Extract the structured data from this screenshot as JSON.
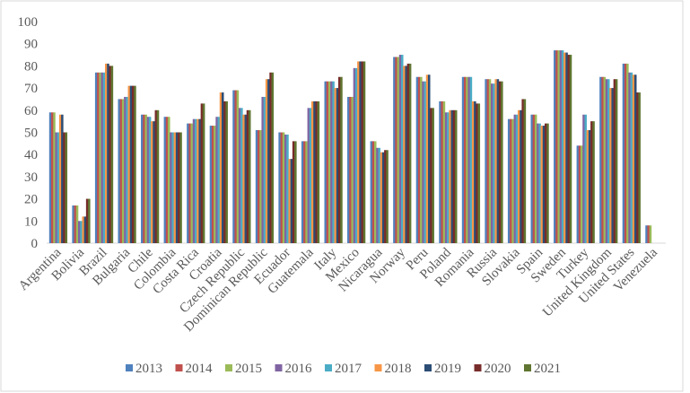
{
  "chart_data": {
    "type": "bar",
    "title": "",
    "xlabel": "",
    "ylabel": "",
    "ylim": [
      0,
      100
    ],
    "yticks": [
      0,
      10,
      20,
      30,
      40,
      50,
      60,
      70,
      80,
      90,
      100
    ],
    "grid": false,
    "legend_position": "bottom",
    "categories": [
      "Argentina",
      "Bolivia",
      "Brazil",
      "Bulgaria",
      "Chile",
      "Colombia",
      "Costa Rica",
      "Croatia",
      "Czech Republic",
      "Dominican Republic",
      "Ecuador",
      "Guatemala",
      "Italy",
      "Mexico",
      "Nicaragua",
      "Norway",
      "Peru",
      "Poland",
      "Romania",
      "Russia",
      "Slovakia",
      "Spain",
      "Sweden",
      "Turkey",
      "United Kingdom",
      "United States",
      "Venezuela"
    ],
    "colors": [
      "#4f81bd",
      "#c0504d",
      "#9bbb59",
      "#8064a2",
      "#4bacc6",
      "#f79646",
      "#2c4d75",
      "#772c2a",
      "#5f7530"
    ],
    "series": [
      {
        "name": "2013",
        "values": [
          59,
          17,
          77,
          65,
          58,
          57,
          54,
          53,
          69,
          51,
          50,
          46,
          73,
          66,
          46,
          84,
          75,
          64,
          75,
          74,
          56,
          58,
          87,
          44,
          75,
          81,
          8
        ]
      },
      {
        "name": "2014",
        "values": [
          59,
          17,
          77,
          65,
          58,
          57,
          54,
          53,
          69,
          51,
          50,
          46,
          73,
          66,
          46,
          84,
          75,
          64,
          75,
          74,
          56,
          58,
          87,
          44,
          75,
          81,
          8
        ]
      },
      {
        "name": "2015",
        "values": [
          59,
          17,
          77,
          65,
          58,
          57,
          54,
          53,
          69,
          51,
          50,
          46,
          73,
          66,
          46,
          84,
          75,
          64,
          75,
          74,
          56,
          58,
          87,
          44,
          75,
          81,
          8
        ]
      },
      {
        "name": "2016",
        "values": [
          50,
          10,
          77,
          66,
          57,
          50,
          56,
          57,
          61,
          66,
          49,
          61,
          73,
          79,
          43,
          85,
          73,
          59,
          75,
          72,
          58,
          54,
          87,
          58,
          74,
          77,
          null
        ]
      },
      {
        "name": "2017",
        "values": [
          50,
          10,
          77,
          66,
          57,
          50,
          56,
          57,
          61,
          66,
          49,
          61,
          73,
          79,
          43,
          85,
          73,
          59,
          75,
          72,
          58,
          54,
          87,
          58,
          74,
          77,
          null
        ]
      },
      {
        "name": "2018",
        "values": [
          58,
          12,
          81,
          71,
          55,
          50,
          56,
          68,
          58,
          74,
          38,
          64,
          70,
          82,
          41,
          80,
          76,
          60,
          64,
          74,
          60,
          53,
          86,
          51,
          70,
          76,
          null
        ]
      },
      {
        "name": "2019",
        "values": [
          58,
          12,
          81,
          71,
          55,
          50,
          56,
          68,
          58,
          74,
          38,
          64,
          70,
          82,
          41,
          80,
          76,
          60,
          64,
          74,
          60,
          53,
          86,
          51,
          70,
          76,
          null
        ]
      },
      {
        "name": "2020",
        "values": [
          50,
          20,
          80,
          71,
          60,
          50,
          63,
          64,
          60,
          77,
          46,
          64,
          75,
          82,
          42,
          81,
          61,
          60,
          63,
          73,
          65,
          54,
          85,
          55,
          74,
          68,
          null
        ]
      },
      {
        "name": "2021",
        "values": [
          50,
          20,
          80,
          71,
          60,
          50,
          63,
          64,
          60,
          77,
          46,
          64,
          75,
          82,
          42,
          81,
          61,
          60,
          63,
          73,
          65,
          54,
          85,
          55,
          74,
          68,
          null
        ]
      }
    ]
  }
}
